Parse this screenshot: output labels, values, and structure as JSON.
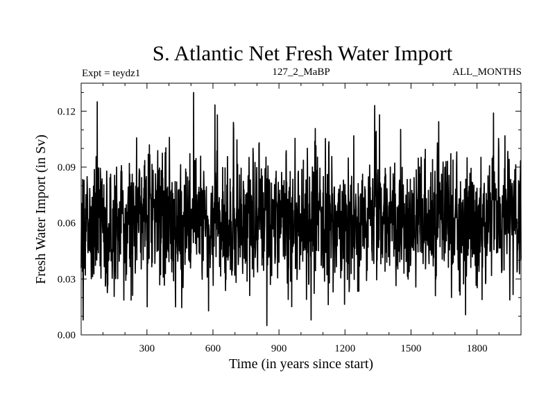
{
  "chart_data": {
    "type": "line",
    "title": "S. Atlantic Net Fresh Water Import",
    "subtitle_left": "Expt = teydz1",
    "subtitle_center": "127_2_MaBP",
    "subtitle_right": "ALL_MONTHS",
    "xlabel": "Time (in years since start)",
    "ylabel": "Fresh Water Import (in Sv)",
    "xlim": [
      1,
      2000
    ],
    "ylim": [
      0.0,
      0.135
    ],
    "xticks": [
      300,
      600,
      900,
      1200,
      1500,
      1800
    ],
    "xtick_labels": [
      "300",
      "600",
      "900",
      "1200",
      "1500",
      "1800"
    ],
    "yticks": [
      0.0,
      0.03,
      0.06,
      0.09,
      0.12
    ],
    "ytick_labels": [
      "0.00",
      "0.03",
      "0.06",
      "0.09",
      "0.12"
    ],
    "series": [
      {
        "name": "net fresh water import",
        "color": "#000000",
        "generator": {
          "kind": "noisy-annual-series",
          "n_points": 2000,
          "seed": 12702,
          "mean": 0.062,
          "std": 0.017,
          "peaks": [
            [
              7,
              0.034
            ],
            [
              74,
              0.125
            ],
            [
              162,
              0.09
            ],
            [
              512,
              0.13
            ],
            [
              620,
              0.118
            ],
            [
              845,
              0.005
            ],
            [
              1335,
              0.123
            ],
            [
              1025,
              0.019
            ],
            [
              1875,
              0.119
            ],
            [
              430,
              0.015
            ]
          ]
        }
      }
    ]
  }
}
